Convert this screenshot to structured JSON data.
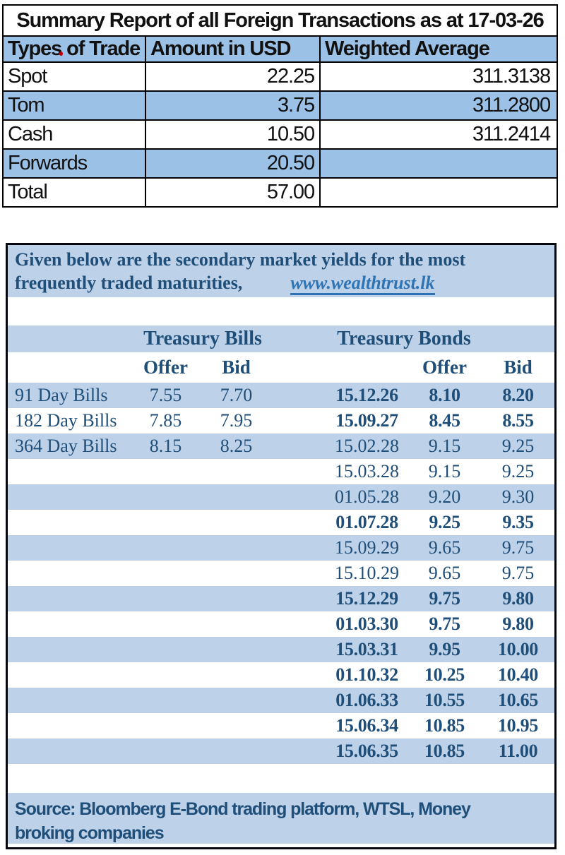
{
  "summary_table": {
    "title": "Summary Report of all Foreign Transactions as at 17-03-26",
    "columns": [
      "Types of Trade",
      "Amount in USD",
      "Weighted Average"
    ],
    "rows": [
      {
        "type": "Spot",
        "amount": "22.25",
        "weighted_avg": "311.3138"
      },
      {
        "type": "Tom",
        "amount": "3.75",
        "weighted_avg": "311.2800"
      },
      {
        "type": "Cash",
        "amount": "10.50",
        "weighted_avg": "311.2414"
      },
      {
        "type": "Forwards",
        "amount": "20.50",
        "weighted_avg": ""
      },
      {
        "type": "Total",
        "amount": "57.00",
        "weighted_avg": ""
      }
    ]
  },
  "yields_section": {
    "intro_line1": "Given below are the secondary market yields for the most",
    "intro_line2": "frequently traded maturities,",
    "link": "www.wealthtrust.lk",
    "bills_header": "Treasury Bills",
    "bonds_header": "Treasury Bonds",
    "offer_label": "Offer",
    "bid_label": "Bid",
    "bills": [
      {
        "label": "91 Day Bills",
        "offer": "7.55",
        "bid": "7.70"
      },
      {
        "label": "182 Day Bills",
        "offer": "7.85",
        "bid": "7.95"
      },
      {
        "label": "364 Day Bills",
        "offer": "8.15",
        "bid": "8.25"
      }
    ],
    "bonds": [
      {
        "date": "15.12.26",
        "offer": "8.10",
        "bid": "8.20",
        "bold": true
      },
      {
        "date": "15.09.27",
        "offer": "8.45",
        "bid": "8.55",
        "bold": true
      },
      {
        "date": "15.02.28",
        "offer": "9.15",
        "bid": "9.25",
        "bold": false
      },
      {
        "date": "15.03.28",
        "offer": "9.15",
        "bid": "9.25",
        "bold": false
      },
      {
        "date": "01.05.28",
        "offer": "9.20",
        "bid": "9.30",
        "bold": false
      },
      {
        "date": "01.07.28",
        "offer": "9.25",
        "bid": "9.35",
        "bold": true
      },
      {
        "date": "15.09.29",
        "offer": "9.65",
        "bid": "9.75",
        "bold": false
      },
      {
        "date": "15.10.29",
        "offer": "9.65",
        "bid": "9.75",
        "bold": false
      },
      {
        "date": "15.12.29",
        "offer": "9.75",
        "bid": "9.80",
        "bold": true
      },
      {
        "date": "01.03.30",
        "offer": "9.75",
        "bid": "9.80",
        "bold": true
      },
      {
        "date": "15.03.31",
        "offer": "9.95",
        "bid": "10.00",
        "bold": true
      },
      {
        "date": "01.10.32",
        "offer": "10.25",
        "bid": "10.40",
        "bold": true
      },
      {
        "date": "01.06.33",
        "offer": "10.55",
        "bid": "10.65",
        "bold": true
      },
      {
        "date": "15.06.34",
        "offer": "10.85",
        "bid": "10.95",
        "bold": true
      },
      {
        "date": "15.06.35",
        "offer": "10.85",
        "bid": "11.00",
        "bold": true
      }
    ],
    "source_text": "Source: Bloomberg E-Bond trading platform, WTSL, Money broking companies"
  },
  "colors": {
    "summary_blue": "#9bc1e6",
    "yields_blue": "#bdd1e8",
    "navy_text": "#1f4e79",
    "link_blue": "#2e74b5",
    "border_black": "#000000"
  }
}
